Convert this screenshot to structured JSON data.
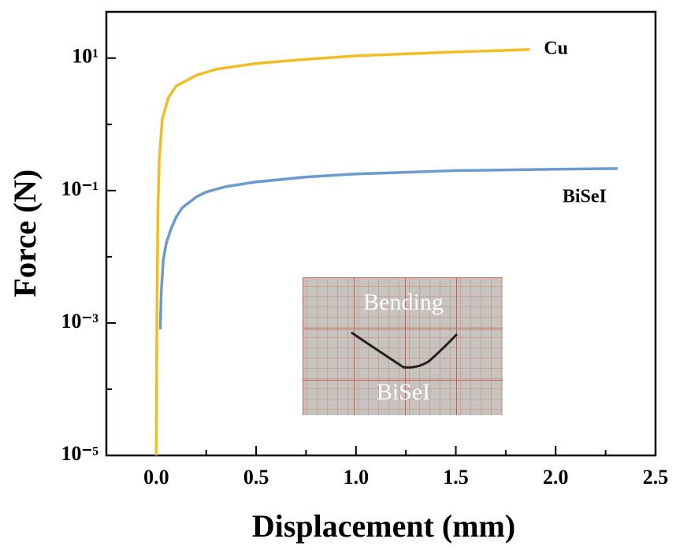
{
  "chart_data": {
    "type": "line",
    "log_y": true,
    "xlabel": "Displacement (mm)",
    "ylabel": "Force (N)",
    "xlim": [
      -0.25,
      2.5
    ],
    "xticks": [
      {
        "value": 0,
        "label": "0.0"
      },
      0.5,
      {
        "value": 1,
        "label": "1.0"
      },
      1.5,
      {
        "value": 2,
        "label": "2.0"
      },
      2.5
    ],
    "xminor_ticks": [
      -0.25,
      0.25,
      0.75,
      1.25,
      1.75,
      2.25
    ],
    "ylim": [
      1e-05,
      50
    ],
    "yticks": [
      {
        "value": 1e-05,
        "label": "10⁻⁵"
      },
      {
        "value": 0.001,
        "label": "10⁻³"
      },
      {
        "value": 0.1,
        "label": "10⁻¹"
      },
      {
        "value": 10,
        "label": "10¹"
      }
    ],
    "yminor_ticks": [
      0.0001,
      0.01,
      1
    ],
    "series": [
      {
        "name": "Cu",
        "color": "#f2bd23",
        "x": [
          0,
          0.003,
          0.008,
          0.015,
          0.03,
          0.06,
          0.1,
          0.2,
          0.3,
          0.5,
          0.75,
          1.0,
          1.25,
          1.5,
          1.75,
          1.87
        ],
        "values": [
          1e-05,
          0.001,
          0.05,
          0.3,
          1.2,
          2.5,
          3.8,
          5.5,
          6.8,
          8.3,
          9.6,
          10.8,
          11.6,
          12.4,
          13.1,
          13.5
        ]
      },
      {
        "name": "BiSeI",
        "color": "#6b9ad0",
        "x": [
          0.02,
          0.025,
          0.035,
          0.05,
          0.075,
          0.1,
          0.13,
          0.2,
          0.25,
          0.35,
          0.5,
          0.75,
          1.0,
          1.5,
          2.0,
          2.31
        ],
        "values": [
          0.0008,
          0.003,
          0.009,
          0.016,
          0.027,
          0.04,
          0.055,
          0.08,
          0.095,
          0.115,
          0.135,
          0.16,
          0.178,
          0.2,
          0.21,
          0.215
        ]
      }
    ],
    "inset_texts": [
      "Bending",
      "BiSeI"
    ]
  }
}
